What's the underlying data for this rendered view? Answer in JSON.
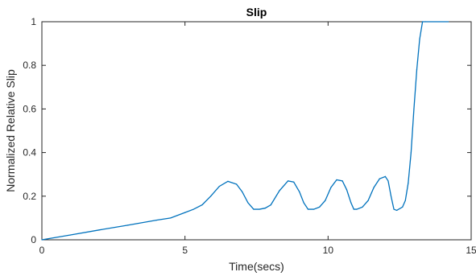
{
  "chart_data": {
    "type": "line",
    "title": "Slip",
    "xlabel": "Time(secs)",
    "ylabel": "Normalized Relative Slip",
    "xlim": [
      0,
      15
    ],
    "ylim": [
      0,
      1
    ],
    "xticks": [
      0,
      5,
      10,
      15
    ],
    "xtick_labels": [
      "0",
      "5",
      "10",
      "15"
    ],
    "yticks": [
      0,
      0.2,
      0.4,
      0.6,
      0.8,
      1
    ],
    "ytick_labels": [
      "0",
      "0.2",
      "0.4",
      "0.6",
      "0.8",
      "1"
    ],
    "grid": false,
    "line_color": "#0072BD",
    "series": [
      {
        "x": [
          0,
          1,
          2,
          3,
          4,
          4.5,
          5,
          5.3,
          5.6,
          5.9,
          6.2,
          6.5,
          6.8,
          7.0,
          7.2,
          7.4,
          7.6,
          7.8,
          8.0,
          8.3,
          8.6,
          8.8,
          9.0,
          9.15,
          9.3,
          9.5,
          9.7,
          9.9,
          10.1,
          10.3,
          10.5,
          10.65,
          10.8,
          10.9,
          11.0,
          11.2,
          11.4,
          11.6,
          11.8,
          12.0,
          12.1,
          12.2,
          12.3,
          12.4,
          12.6,
          12.7,
          12.8,
          12.9,
          13.0,
          13.1,
          13.2,
          13.3,
          13.4,
          14.2
        ],
        "y": [
          0,
          0.022,
          0.045,
          0.067,
          0.09,
          0.1,
          0.125,
          0.14,
          0.16,
          0.2,
          0.245,
          0.268,
          0.255,
          0.22,
          0.17,
          0.14,
          0.14,
          0.145,
          0.16,
          0.225,
          0.27,
          0.265,
          0.22,
          0.17,
          0.14,
          0.14,
          0.15,
          0.18,
          0.24,
          0.275,
          0.27,
          0.23,
          0.17,
          0.14,
          0.14,
          0.15,
          0.18,
          0.24,
          0.28,
          0.29,
          0.27,
          0.2,
          0.14,
          0.135,
          0.15,
          0.18,
          0.26,
          0.4,
          0.6,
          0.78,
          0.92,
          1.0,
          1.0,
          1.0
        ]
      }
    ]
  }
}
